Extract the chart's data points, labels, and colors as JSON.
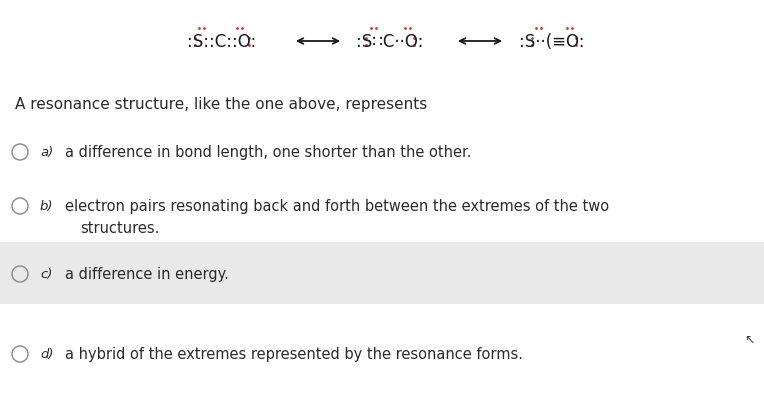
{
  "bg_color": "#ffffff",
  "highlight_color": "#e9e9e9",
  "text_color": "#2a2a2a",
  "red_color": "#c0392b",
  "black_color": "#1a1a1a",
  "question": "A resonance structure, like the one above, represents",
  "options": [
    {
      "label": "a)",
      "text1": "a difference in bond length, one shorter than the other.",
      "text2": null,
      "highlighted": false
    },
    {
      "label": "b)",
      "text1": "electron pairs resonating back and forth between the extremes of the two",
      "text2": "structures.",
      "highlighted": false
    },
    {
      "label": "c)",
      "text1": "a difference in energy.",
      "text2": null,
      "highlighted": true
    },
    {
      "label": "d)",
      "text1": "a hybrid of the extremes represented by the resonance forms.",
      "text2": null,
      "highlighted": false
    }
  ],
  "figsize": [
    7.64,
    4.02
  ],
  "dpi": 100
}
